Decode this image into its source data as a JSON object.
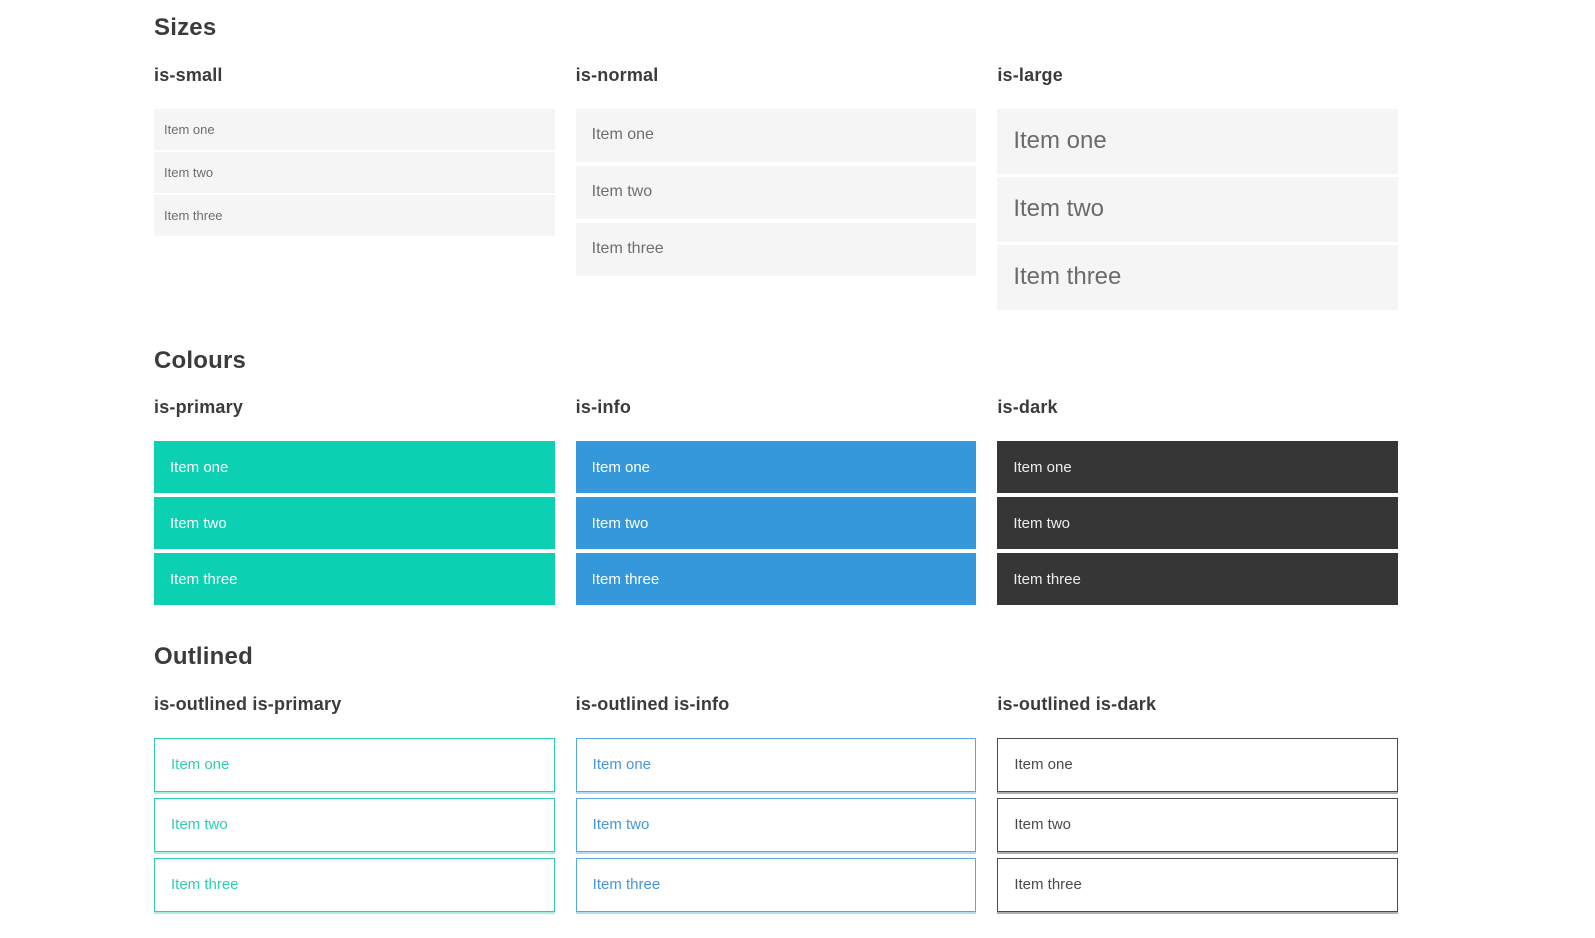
{
  "sections": [
    {
      "title": "Sizes",
      "groups": [
        {
          "label": "is-small",
          "variant": "small",
          "items": [
            "Item one",
            "Item two",
            "Item three"
          ]
        },
        {
          "label": "is-normal",
          "variant": "normal",
          "items": [
            "Item one",
            "Item two",
            "Item three"
          ]
        },
        {
          "label": "is-large",
          "variant": "large",
          "items": [
            "Item one",
            "Item two",
            "Item three"
          ]
        }
      ]
    },
    {
      "title": "Colours",
      "groups": [
        {
          "label": "is-primary",
          "variant": "primary",
          "items": [
            "Item one",
            "Item two",
            "Item three"
          ]
        },
        {
          "label": "is-info",
          "variant": "info",
          "items": [
            "Item one",
            "Item two",
            "Item three"
          ]
        },
        {
          "label": "is-dark",
          "variant": "dark",
          "items": [
            "Item one",
            "Item two",
            "Item three"
          ]
        }
      ]
    },
    {
      "title": "Outlined",
      "groups": [
        {
          "label": "is-outlined is-primary",
          "variant": "outlined-primary",
          "items": [
            "Item one",
            "Item two",
            "Item three"
          ]
        },
        {
          "label": "is-outlined is-info",
          "variant": "outlined-info",
          "items": [
            "Item one",
            "Item two",
            "Item three"
          ]
        },
        {
          "label": "is-outlined is-dark",
          "variant": "outlined-dark",
          "items": [
            "Item one",
            "Item two",
            "Item three"
          ]
        }
      ]
    }
  ],
  "colors": {
    "primary": "#0bd0b2",
    "info": "#3598db",
    "dark": "#363636",
    "item_background": "#f5f5f5",
    "item_text": "#6e6e6e",
    "heading_text": "#3b3b3b",
    "outlined_primary_text": "#2fcdb3",
    "outlined_info_text": "#4596d9",
    "outlined_dark_text": "#4a4a4a"
  }
}
